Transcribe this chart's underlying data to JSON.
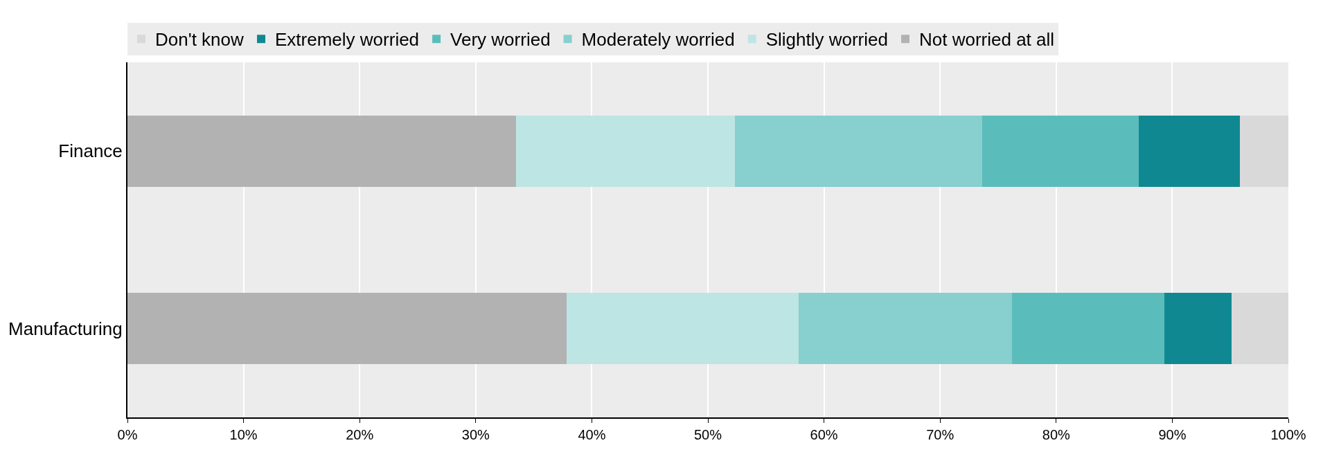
{
  "chart_data": {
    "type": "bar",
    "orientation": "horizontal",
    "stacked": true,
    "categories": [
      "Finance",
      "Manufacturing"
    ],
    "series": [
      {
        "name": "Not worried at all",
        "color": "#b2b2b2",
        "values": [
          33.5,
          37.8
        ]
      },
      {
        "name": "Slightly worried",
        "color": "#bde5e4",
        "values": [
          18.8,
          20.0
        ]
      },
      {
        "name": "Moderately worried",
        "color": "#88cfcf",
        "values": [
          21.3,
          18.4
        ]
      },
      {
        "name": "Very worried",
        "color": "#5bbcbc",
        "values": [
          13.5,
          13.1
        ]
      },
      {
        "name": "Extremely worried",
        "color": "#108891",
        "values": [
          8.7,
          5.8
        ]
      },
      {
        "name": "Don't know",
        "color": "#d9d9d9",
        "values": [
          4.2,
          4.9
        ]
      }
    ],
    "xlim": [
      0,
      100
    ],
    "xticks": [
      {
        "value": 0,
        "label": "0%"
      },
      {
        "value": 10,
        "label": "10%"
      },
      {
        "value": 20,
        "label": "20%"
      },
      {
        "value": 30,
        "label": "30%"
      },
      {
        "value": 40,
        "label": "40%"
      },
      {
        "value": 50,
        "label": "50%"
      },
      {
        "value": 60,
        "label": "60%"
      },
      {
        "value": 70,
        "label": "70%"
      },
      {
        "value": 80,
        "label": "80%"
      },
      {
        "value": 90,
        "label": "90%"
      },
      {
        "value": 100,
        "label": "100%"
      }
    ],
    "grid": "x",
    "legend": "top"
  }
}
